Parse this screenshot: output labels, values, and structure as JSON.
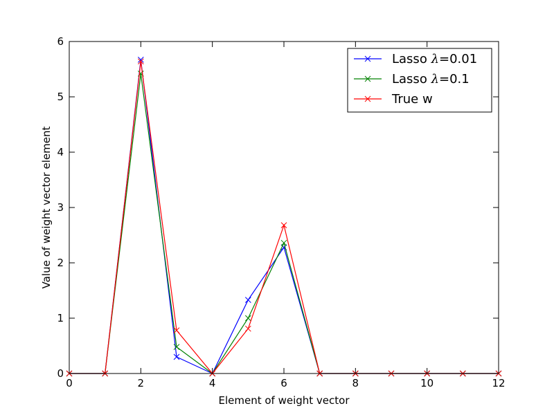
{
  "chart_data": {
    "type": "line",
    "title": "",
    "xlabel": "Element of weight vector",
    "ylabel": "Value of weight vector element",
    "xlim": [
      0,
      12
    ],
    "ylim": [
      0,
      6
    ],
    "x_ticks": [
      "0",
      "2",
      "4",
      "6",
      "8",
      "10",
      "12"
    ],
    "y_ticks": [
      "0",
      "1",
      "2",
      "3",
      "4",
      "5",
      "6"
    ],
    "grid": false,
    "legend_position": "top-right",
    "marker": "x",
    "x": [
      0,
      1,
      2,
      3,
      4,
      5,
      6,
      7,
      8,
      9,
      10,
      11,
      12
    ],
    "series": [
      {
        "name": "Lasso λ=0.01",
        "legend_prefix": "Lasso ",
        "legend_symbol": "λ",
        "legend_suffix": "=0.01",
        "color": "#0000ff",
        "values": [
          0,
          0,
          5.67,
          0.3,
          0,
          1.33,
          2.28,
          0,
          0,
          0,
          0,
          0,
          0
        ]
      },
      {
        "name": "Lasso λ=0.1",
        "legend_prefix": "Lasso ",
        "legend_symbol": "λ",
        "legend_suffix": "=0.1",
        "color": "#008000",
        "values": [
          0,
          0,
          5.42,
          0.48,
          0,
          1.0,
          2.36,
          0,
          0,
          0,
          0,
          0,
          0
        ]
      },
      {
        "name": "True w",
        "legend_prefix": "True w",
        "legend_symbol": "",
        "legend_suffix": "",
        "color": "#ff0000",
        "values": [
          0,
          0,
          5.64,
          0.78,
          0,
          0.81,
          2.68,
          0,
          0,
          0,
          0,
          0,
          0
        ]
      }
    ]
  }
}
